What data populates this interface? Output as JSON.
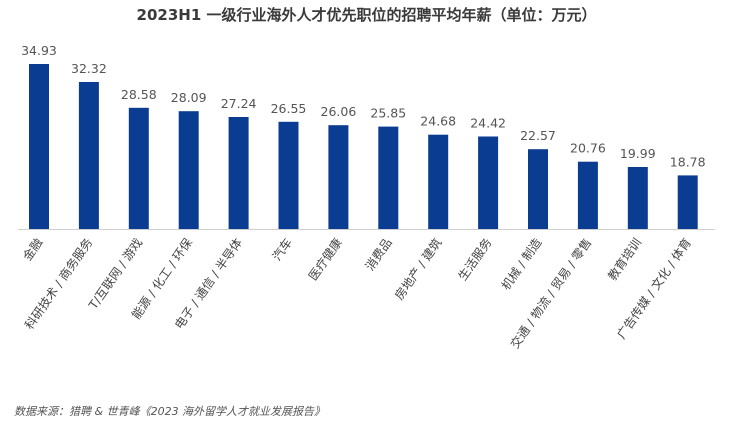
{
  "chart_data": {
    "type": "bar",
    "title": "2023H1 一级行业海外人才优先职位的招聘平均年薪（单位：万元）",
    "categories": [
      "金融",
      "科研技术 / 商务服务",
      "IT/互联网 / 游戏",
      "能源 / 化工 / 环保",
      "电子 / 通信 / 半导体",
      "汽车",
      "医疗健康",
      "消费品",
      "房地产 / 建筑",
      "生活服务",
      "机械 / 制造",
      "交通 / 物流 / 贸易 / 零售",
      "教育培训",
      "广告传媒 / 文化 / 体育"
    ],
    "category_labels_shown": [
      "金融",
      "科研技术 / 商务服务",
      "T/互联网 / 游戏",
      "能源 / 化工 / 环保",
      "电子 / 通信 / 半导体",
      "汽车",
      "医疗健康",
      "消费品",
      "房地产 / 建筑",
      "生活服务",
      "机械 / 制造",
      "交通 / 物流 / 贸易 / 零售",
      "教育培训",
      "广告传媒 / 文化 / 体育"
    ],
    "values": [
      34.93,
      32.32,
      28.58,
      28.09,
      27.24,
      26.55,
      26.06,
      25.85,
      24.68,
      24.42,
      22.57,
      20.76,
      19.99,
      18.78
    ],
    "value_labels": [
      "34.93",
      "32.32",
      "28.58",
      "28.09",
      "27.24",
      "26.55",
      "26.06",
      "25.85",
      "24.68",
      "24.42",
      "22.57",
      "20.76",
      "19.99",
      "18.78"
    ],
    "ylim": [
      11,
      36
    ],
    "grid": false,
    "legend": "none",
    "bar_color": "#0a3d91"
  },
  "source_note": "数据来源：猎聘 & 世青峰《2023 海外留学人才就业发展报告》"
}
